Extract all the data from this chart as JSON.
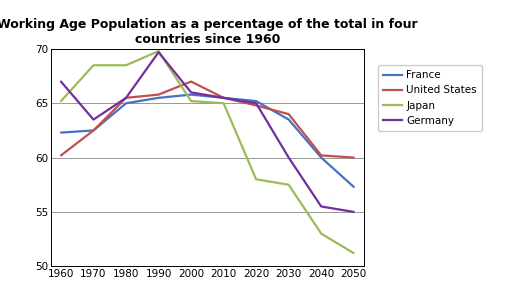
{
  "title": "Working Age Population as a percentage of the total in four\ncountries since 1960",
  "years": [
    1960,
    1970,
    1980,
    1990,
    2000,
    2010,
    2020,
    2030,
    2040,
    2050
  ],
  "series": {
    "France": {
      "values": [
        62.3,
        62.5,
        65.0,
        65.5,
        65.8,
        65.5,
        65.2,
        63.5,
        60.0,
        57.3
      ],
      "color": "#4472C4"
    },
    "United States": {
      "values": [
        60.2,
        62.5,
        65.5,
        65.8,
        67.0,
        65.5,
        64.8,
        64.0,
        60.2,
        60.0
      ],
      "color": "#C0504D"
    },
    "Japan": {
      "values": [
        65.2,
        68.5,
        68.5,
        69.8,
        65.2,
        65.0,
        58.0,
        57.5,
        53.0,
        51.2
      ],
      "color": "#9BBB59"
    },
    "Germany": {
      "values": [
        67.0,
        63.5,
        65.5,
        69.7,
        66.0,
        65.5,
        65.0,
        60.0,
        55.5,
        55.0
      ],
      "color": "#7030A0"
    }
  },
  "ylim": [
    50,
    70
  ],
  "yticks": [
    50,
    55,
    60,
    65,
    70
  ],
  "xlim": [
    1957,
    2053
  ],
  "xticks": [
    1960,
    1970,
    1980,
    1990,
    2000,
    2010,
    2020,
    2030,
    2040,
    2050
  ],
  "legend_order": [
    "France",
    "United States",
    "Japan",
    "Germany"
  ],
  "background_color": "#FFFFFF",
  "grid_color": "#888888",
  "title_fontsize": 9,
  "tick_fontsize": 7.5,
  "legend_fontsize": 7.5,
  "linewidth": 1.6
}
